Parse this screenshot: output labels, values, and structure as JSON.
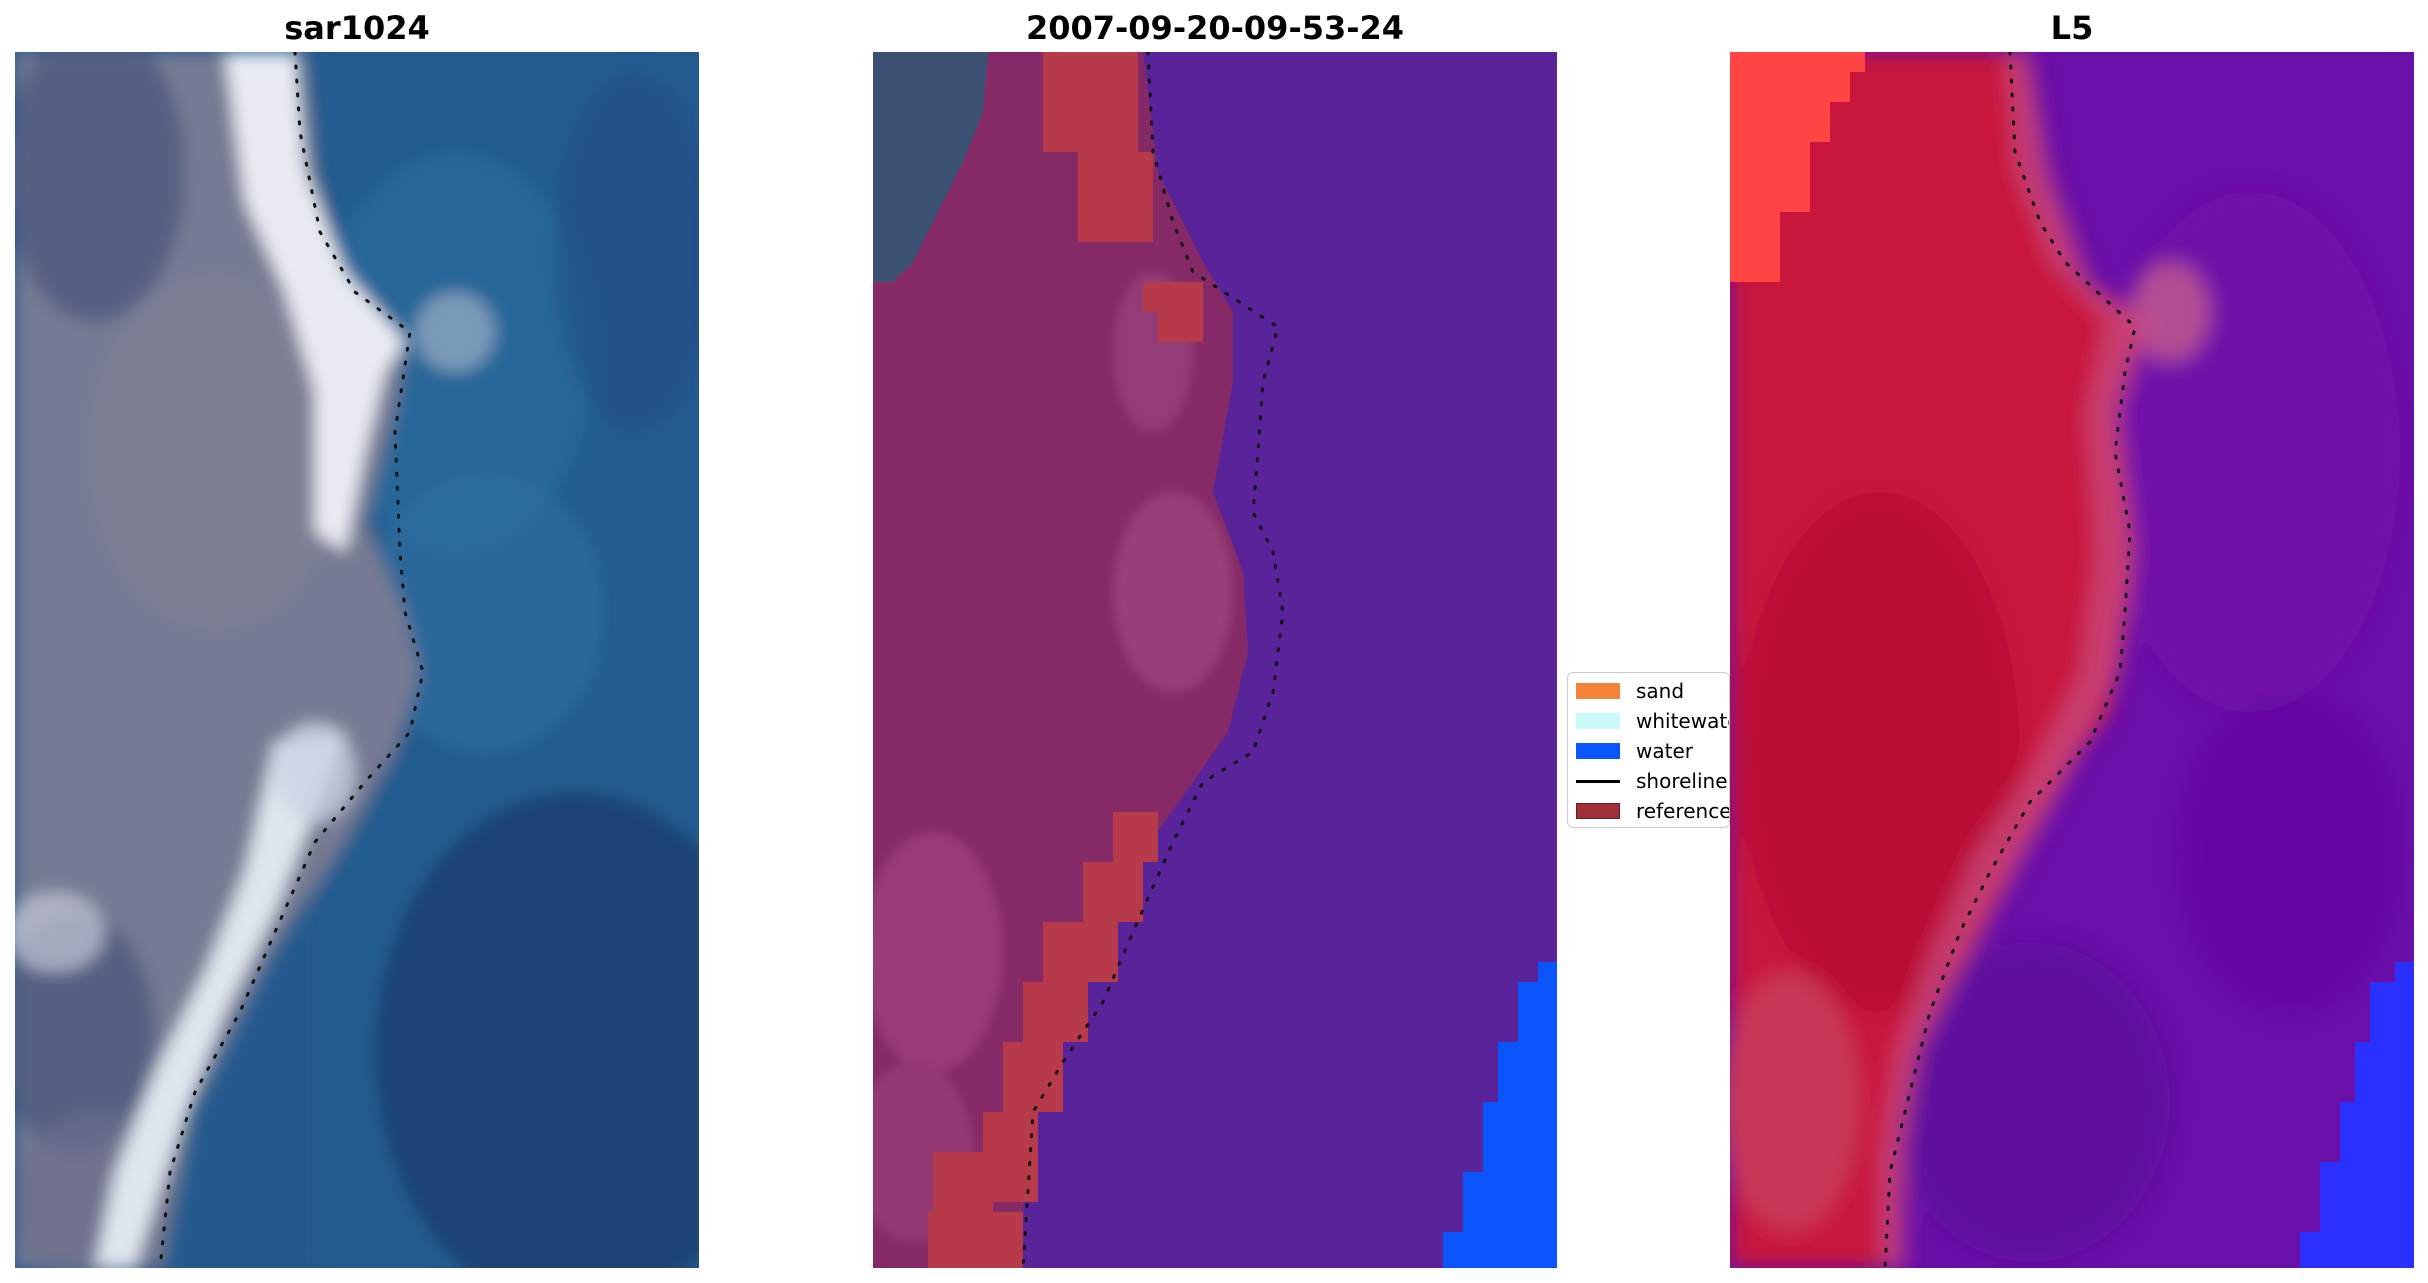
{
  "panels": [
    {
      "title": "sar1024"
    },
    {
      "title": "2007-09-20-09-53-24"
    },
    {
      "title": "L5"
    }
  ],
  "legend": {
    "items": [
      {
        "label": "sand",
        "color": "#f5843a",
        "type": "patch"
      },
      {
        "label": "whitewater",
        "color": "#c9fbf8",
        "type": "patch"
      },
      {
        "label": "water",
        "color": "#0b55ff",
        "type": "patch"
      },
      {
        "label": "shoreline",
        "color": "#000000",
        "type": "line"
      },
      {
        "label": "reference",
        "color": "#9e3038",
        "type": "patch"
      }
    ]
  },
  "colors": {
    "rgb_water": "#23598d",
    "rgb_land": "#767a92",
    "rgb_whitewater": "#e8ebf2",
    "class_water_overlay": "#59239a",
    "class_land_overlay": "#852a67",
    "class_reference": "#b73a4b",
    "class_water_bottom": "#0b55ff",
    "index_land": "#c8183d",
    "index_water": "#6a0fa8",
    "index_sand": "#ff4444",
    "index_blue": "#2a31ff"
  }
}
